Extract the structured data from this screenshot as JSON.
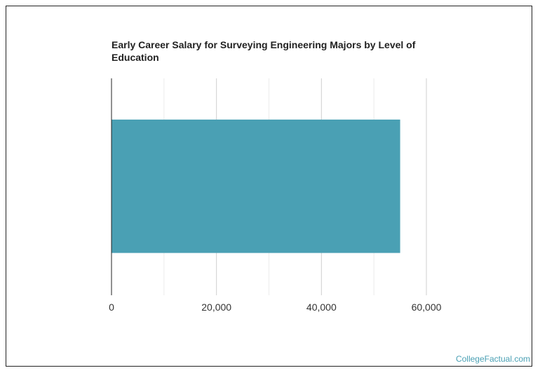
{
  "chart_data": {
    "type": "bar",
    "orientation": "horizontal",
    "title": "Early Career Salary for Surveying Engineering Majors by Level of Education",
    "categories": [
      ""
    ],
    "values": [
      55000
    ],
    "xlim": [
      0,
      60000
    ],
    "xticks": [
      0,
      20000,
      40000,
      60000
    ],
    "xtick_labels": [
      "0",
      "20,000",
      "40,000",
      "60,000"
    ],
    "grid": true,
    "bar_color": "#4aa0b4"
  },
  "credit": "CollegeFactual.com"
}
